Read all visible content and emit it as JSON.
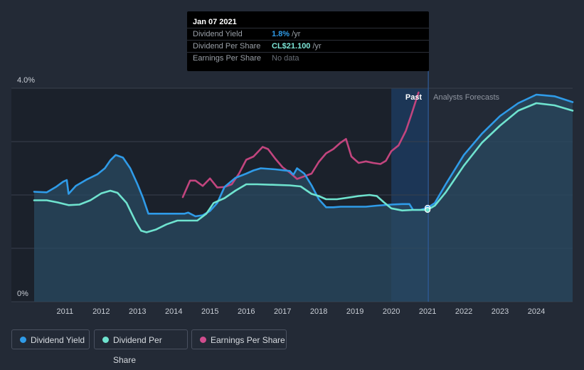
{
  "tooltip": {
    "date": "Jan 07 2021",
    "rows": [
      {
        "label": "Dividend Yield",
        "value": "1.8%",
        "unit": " /yr",
        "color": "#2f9be8"
      },
      {
        "label": "Dividend Per Share",
        "value": "CL$21.100",
        "unit": " /yr",
        "color": "#7ee8d9"
      },
      {
        "label": "Earnings Per Share",
        "value": "No data",
        "unit": "",
        "color": "#6a7079"
      }
    ]
  },
  "legend": [
    {
      "label": "Dividend Yield",
      "color": "#2f9be8"
    },
    {
      "label": "Dividend Per Share",
      "color": "#6fe3cf"
    },
    {
      "label": "Earnings Per Share",
      "color": "#d04d8e"
    }
  ],
  "colors": {
    "background": "#232a36",
    "past_shade": "#1b212b",
    "divider": "#2f5d9c",
    "grid": "#39404c",
    "yield_line": "#2f9be8",
    "dps_line": "#6fe3cf",
    "eps_line": "#c2457e",
    "area_fill": "#2a4a62"
  },
  "chart_data": {
    "type": "line",
    "title": "",
    "xlabel": "",
    "ylabel": "",
    "xlim": [
      2010.15,
      2025.0
    ],
    "ylim": [
      0,
      4.0
    ],
    "y_ticks": [
      {
        "label": "4.0%",
        "value": 4.0
      },
      {
        "label": "0%",
        "value": 0
      }
    ],
    "x_ticks": [
      2011,
      2012,
      2013,
      2014,
      2015,
      2016,
      2017,
      2018,
      2019,
      2020,
      2021,
      2022,
      2023,
      2024
    ],
    "past_label": "Past",
    "forecast_label": "Analysts Forecasts",
    "past_forecast_divider": 2021.02,
    "highlight_start": 2020.0,
    "marker_x": 2021.0,
    "series": [
      {
        "name": "Dividend Yield",
        "unit": "%",
        "points": [
          [
            2010.15,
            2.06
          ],
          [
            2010.5,
            2.05
          ],
          [
            2010.75,
            2.15
          ],
          [
            2010.95,
            2.25
          ],
          [
            2011.05,
            2.28
          ],
          [
            2011.1,
            2.02
          ],
          [
            2011.3,
            2.17
          ],
          [
            2011.6,
            2.29
          ],
          [
            2011.9,
            2.39
          ],
          [
            2012.1,
            2.5
          ],
          [
            2012.25,
            2.65
          ],
          [
            2012.4,
            2.75
          ],
          [
            2012.6,
            2.7
          ],
          [
            2012.8,
            2.5
          ],
          [
            2013.0,
            2.2
          ],
          [
            2013.15,
            1.95
          ],
          [
            2013.3,
            1.65
          ],
          [
            2013.5,
            1.65
          ],
          [
            2014.0,
            1.65
          ],
          [
            2014.3,
            1.65
          ],
          [
            2014.4,
            1.67
          ],
          [
            2014.6,
            1.6
          ],
          [
            2014.8,
            1.62
          ],
          [
            2015.0,
            1.7
          ],
          [
            2015.2,
            1.85
          ],
          [
            2015.4,
            2.15
          ],
          [
            2015.7,
            2.32
          ],
          [
            2016.0,
            2.4
          ],
          [
            2016.2,
            2.46
          ],
          [
            2016.4,
            2.5
          ],
          [
            2016.8,
            2.48
          ],
          [
            2017.2,
            2.45
          ],
          [
            2017.3,
            2.38
          ],
          [
            2017.4,
            2.5
          ],
          [
            2017.6,
            2.4
          ],
          [
            2017.8,
            2.18
          ],
          [
            2018.0,
            1.92
          ],
          [
            2018.2,
            1.77
          ],
          [
            2018.4,
            1.77
          ],
          [
            2018.6,
            1.78
          ],
          [
            2019.0,
            1.78
          ],
          [
            2019.3,
            1.78
          ],
          [
            2019.6,
            1.8
          ],
          [
            2020.0,
            1.82
          ],
          [
            2020.3,
            1.83
          ],
          [
            2020.5,
            1.83
          ],
          [
            2020.6,
            1.72
          ],
          [
            2020.8,
            1.72
          ],
          [
            2021.0,
            1.76
          ],
          [
            2021.2,
            1.85
          ],
          [
            2021.5,
            2.2
          ],
          [
            2022.0,
            2.75
          ],
          [
            2022.5,
            3.15
          ],
          [
            2023.0,
            3.48
          ],
          [
            2023.5,
            3.72
          ],
          [
            2024.0,
            3.88
          ],
          [
            2024.5,
            3.85
          ],
          [
            2025.0,
            3.74
          ]
        ]
      },
      {
        "name": "Dividend Per Share",
        "unit": "CL$",
        "points": [
          [
            2010.15,
            1.9
          ],
          [
            2010.5,
            1.9
          ],
          [
            2010.8,
            1.86
          ],
          [
            2011.1,
            1.81
          ],
          [
            2011.4,
            1.82
          ],
          [
            2011.7,
            1.9
          ],
          [
            2012.0,
            2.03
          ],
          [
            2012.25,
            2.08
          ],
          [
            2012.45,
            2.04
          ],
          [
            2012.7,
            1.85
          ],
          [
            2012.95,
            1.5
          ],
          [
            2013.1,
            1.33
          ],
          [
            2013.25,
            1.3
          ],
          [
            2013.5,
            1.35
          ],
          [
            2013.8,
            1.45
          ],
          [
            2014.1,
            1.52
          ],
          [
            2014.4,
            1.52
          ],
          [
            2014.65,
            1.52
          ],
          [
            2014.9,
            1.65
          ],
          [
            2015.1,
            1.85
          ],
          [
            2015.4,
            1.94
          ],
          [
            2015.7,
            2.08
          ],
          [
            2016.0,
            2.2
          ],
          [
            2016.3,
            2.2
          ],
          [
            2016.8,
            2.19
          ],
          [
            2017.2,
            2.18
          ],
          [
            2017.5,
            2.16
          ],
          [
            2017.8,
            2.02
          ],
          [
            2018.0,
            1.98
          ],
          [
            2018.2,
            1.92
          ],
          [
            2018.5,
            1.92
          ],
          [
            2018.8,
            1.95
          ],
          [
            2019.1,
            1.98
          ],
          [
            2019.4,
            2.0
          ],
          [
            2019.6,
            1.98
          ],
          [
            2019.8,
            1.86
          ],
          [
            2020.0,
            1.75
          ],
          [
            2020.3,
            1.71
          ],
          [
            2020.6,
            1.72
          ],
          [
            2021.0,
            1.72
          ],
          [
            2021.2,
            1.8
          ],
          [
            2021.5,
            2.05
          ],
          [
            2022.0,
            2.55
          ],
          [
            2022.5,
            2.98
          ],
          [
            2023.0,
            3.3
          ],
          [
            2023.5,
            3.58
          ],
          [
            2024.0,
            3.72
          ],
          [
            2024.5,
            3.68
          ],
          [
            2025.0,
            3.58
          ]
        ]
      },
      {
        "name": "Earnings Per Share",
        "unit": "CL$",
        "points": [
          [
            2014.25,
            1.96
          ],
          [
            2014.45,
            2.27
          ],
          [
            2014.6,
            2.27
          ],
          [
            2014.8,
            2.17
          ],
          [
            2015.0,
            2.31
          ],
          [
            2015.2,
            2.14
          ],
          [
            2015.4,
            2.15
          ],
          [
            2015.6,
            2.2
          ],
          [
            2015.8,
            2.4
          ],
          [
            2016.0,
            2.66
          ],
          [
            2016.2,
            2.72
          ],
          [
            2016.45,
            2.9
          ],
          [
            2016.6,
            2.86
          ],
          [
            2016.8,
            2.68
          ],
          [
            2017.0,
            2.52
          ],
          [
            2017.2,
            2.42
          ],
          [
            2017.4,
            2.3
          ],
          [
            2017.6,
            2.35
          ],
          [
            2017.8,
            2.4
          ],
          [
            2018.0,
            2.62
          ],
          [
            2018.2,
            2.78
          ],
          [
            2018.4,
            2.86
          ],
          [
            2018.6,
            2.98
          ],
          [
            2018.75,
            3.05
          ],
          [
            2018.9,
            2.72
          ],
          [
            2019.1,
            2.6
          ],
          [
            2019.3,
            2.63
          ],
          [
            2019.5,
            2.6
          ],
          [
            2019.7,
            2.58
          ],
          [
            2019.85,
            2.64
          ],
          [
            2020.0,
            2.82
          ],
          [
            2020.2,
            2.93
          ],
          [
            2020.4,
            3.2
          ],
          [
            2020.55,
            3.5
          ],
          [
            2020.75,
            3.92
          ]
        ]
      }
    ]
  }
}
